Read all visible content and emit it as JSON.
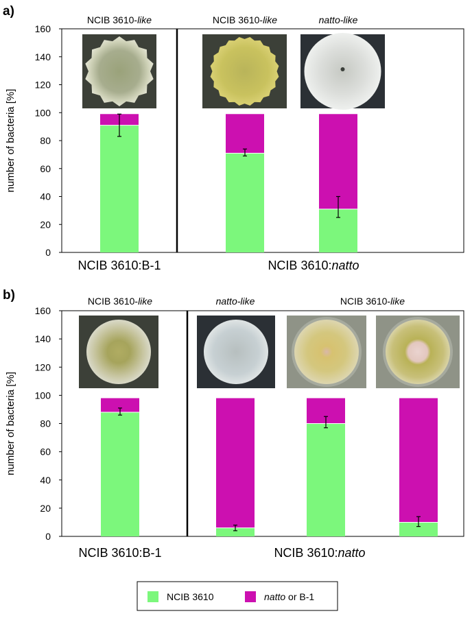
{
  "colors": {
    "ncib": "#7cf77c",
    "other": "#cc10b0",
    "axis": "#000000",
    "errorbar": "#000000"
  },
  "legend": {
    "ncib_label": "NCIB 3610",
    "other_italic": "natto",
    "other_rest": " or B-1"
  },
  "chart_data": [
    {
      "panel": "a)",
      "type": "bar",
      "stacked": true,
      "ylabel": "number of bacteria [%]",
      "ylim": [
        0,
        160
      ],
      "yticks": [
        0,
        20,
        40,
        60,
        80,
        100,
        120,
        140,
        160
      ],
      "groups": [
        {
          "label_plain": "NCIB 3610:B-1",
          "label_italic": ""
        },
        {
          "label_plain": "NCIB 3610:",
          "label_italic": "natto"
        }
      ],
      "bars": [
        {
          "top_plain": "NCIB 3610-",
          "top_italic": "like",
          "colony": "wrinkled-pale",
          "ncib": 91,
          "other": 8,
          "err_low": 83,
          "err_high": 99
        },
        {
          "top_plain": "NCIB 3610-",
          "top_italic": "like",
          "colony": "yellow-ruffled",
          "ncib": 71,
          "other": 28,
          "err_low": 69,
          "err_high": 74
        },
        {
          "top_plain": "",
          "top_italic": "natto-like",
          "colony": "white-dome",
          "ncib": 31,
          "other": 68,
          "err_low": 25,
          "err_high": 40
        }
      ],
      "series": [
        {
          "name": "NCIB 3610",
          "values": [
            91,
            71,
            31
          ]
        },
        {
          "name": "natto or B-1",
          "values": [
            8,
            28,
            68
          ]
        }
      ]
    },
    {
      "panel": "b)",
      "type": "bar",
      "stacked": true,
      "ylabel": "number of bacteria [%]",
      "ylim": [
        0,
        160
      ],
      "yticks": [
        0,
        20,
        40,
        60,
        80,
        100,
        120,
        140,
        160
      ],
      "groups": [
        {
          "label_plain": "NCIB 3610:B-1",
          "label_italic": ""
        },
        {
          "label_plain": "NCIB 3610:",
          "label_italic": "natto"
        }
      ],
      "bars": [
        {
          "top_plain": "NCIB 3610-",
          "top_italic": "like",
          "colony": "greenish-fuzzy",
          "ncib": 88,
          "other": 10,
          "err_low": 86,
          "err_high": 91
        },
        {
          "top_plain": "",
          "top_italic": "natto-like",
          "colony": "bluish-fuzzy",
          "ncib": 6,
          "other": 92,
          "err_low": 4,
          "err_high": 8
        },
        {
          "top_plain": "",
          "top_italic": "",
          "colony": "yellow-ring",
          "ncib": 80,
          "other": 18,
          "err_low": 77,
          "err_high": 85
        },
        {
          "top_plain": "",
          "top_italic": "",
          "colony": "yellow-pink-center",
          "ncib": 10,
          "other": 88,
          "err_low": 7,
          "err_high": 14
        }
      ],
      "shared_top_label": {
        "plain": "NCIB 3610-",
        "italic": "like"
      },
      "series": [
        {
          "name": "NCIB 3610",
          "values": [
            88,
            6,
            80,
            10
          ]
        },
        {
          "name": "natto or B-1",
          "values": [
            10,
            92,
            18,
            88
          ]
        }
      ]
    }
  ]
}
